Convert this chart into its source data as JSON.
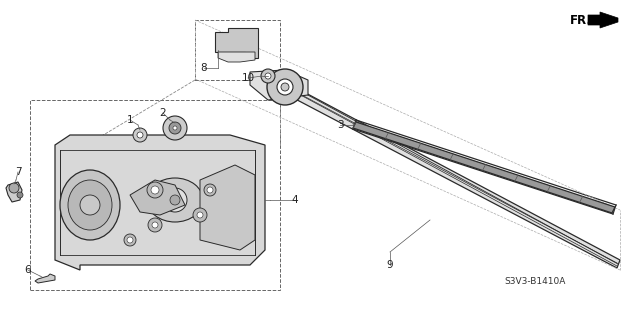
{
  "bg_color": "#ffffff",
  "part_number_text": "S3V3-B1410A",
  "fr_label": "FR.",
  "line_color": "#2a2a2a",
  "text_color": "#222222",
  "gray_fill": "#c8c8c8",
  "dark_fill": "#888888",
  "light_fill": "#e0e0e0",
  "font_size_label": 7.5,
  "font_size_code": 6.5
}
